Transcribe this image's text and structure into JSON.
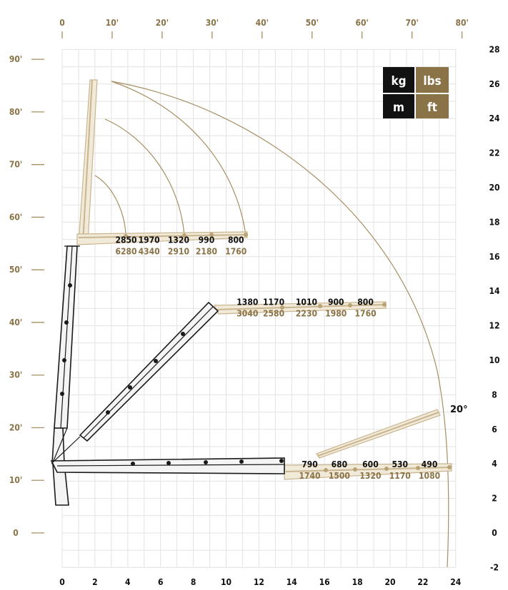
{
  "legend": {
    "kg": "kg",
    "lbs": "lbs",
    "m": "m",
    "ft": "ft",
    "colors": {
      "metric": "#111111",
      "imperial": "#8a7347"
    }
  },
  "axes": {
    "top_ft_ticks": [
      "0",
      "10'",
      "20'",
      "30'",
      "40'",
      "50'",
      "60'",
      "70'",
      "80'"
    ],
    "left_ft_ticks": [
      "0",
      "10'",
      "20'",
      "30'",
      "40'",
      "50'",
      "60'",
      "70'",
      "80'",
      "90'"
    ],
    "bottom_m_ticks": [
      "0",
      "2",
      "4",
      "6",
      "8",
      "10",
      "12",
      "14",
      "16",
      "18",
      "20",
      "22",
      "24"
    ],
    "right_m_ticks": [
      "-2",
      "0",
      "2",
      "4",
      "6",
      "8",
      "10",
      "12",
      "14",
      "16",
      "18",
      "20",
      "22",
      "24",
      "26",
      "28"
    ]
  },
  "chart_data": {
    "type": "diagram",
    "x_range_m": [
      0,
      24
    ],
    "y_range_m": [
      -2,
      28
    ],
    "max_reach_m": 22.3,
    "angle_label": "20°",
    "boom_configurations": [
      {
        "config": "vertical",
        "tip_m": [
          2,
          16.7
        ]
      },
      {
        "config": "diagonal",
        "tip_m": [
          8.6,
          13.3
        ]
      },
      {
        "config": "horizontal",
        "tip_m": [
          12.7,
          4.2
        ]
      }
    ],
    "capacities": [
      {
        "kg": "2850",
        "lbs": "6280",
        "x_m": 3.9,
        "y_m": 16.8
      },
      {
        "kg": "1970",
        "lbs": "4340",
        "x_m": 5.3,
        "y_m": 16.8
      },
      {
        "kg": "1320",
        "lbs": "2910",
        "x_m": 7.1,
        "y_m": 16.8
      },
      {
        "kg": "990",
        "lbs": "2180",
        "x_m": 8.8,
        "y_m": 16.8
      },
      {
        "kg": "800",
        "lbs": "1760",
        "x_m": 10.6,
        "y_m": 16.8
      },
      {
        "kg": "1380",
        "lbs": "3040",
        "x_m": 11.3,
        "y_m": 13.2
      },
      {
        "kg": "1170",
        "lbs": "2580",
        "x_m": 12.9,
        "y_m": 13.2
      },
      {
        "kg": "1010",
        "lbs": "2230",
        "x_m": 14.9,
        "y_m": 13.2
      },
      {
        "kg": "900",
        "lbs": "1980",
        "x_m": 16.7,
        "y_m": 13.2
      },
      {
        "kg": "800",
        "lbs": "1760",
        "x_m": 18.5,
        "y_m": 13.2
      },
      {
        "kg": "790",
        "lbs": "1740",
        "x_m": 15.1,
        "y_m": 3.8
      },
      {
        "kg": "680",
        "lbs": "1500",
        "x_m": 16.9,
        "y_m": 3.8
      },
      {
        "kg": "600",
        "lbs": "1320",
        "x_m": 18.8,
        "y_m": 3.8
      },
      {
        "kg": "530",
        "lbs": "1170",
        "x_m": 20.6,
        "y_m": 3.8
      },
      {
        "kg": "490",
        "lbs": "1080",
        "x_m": 22.4,
        "y_m": 3.8
      }
    ]
  }
}
